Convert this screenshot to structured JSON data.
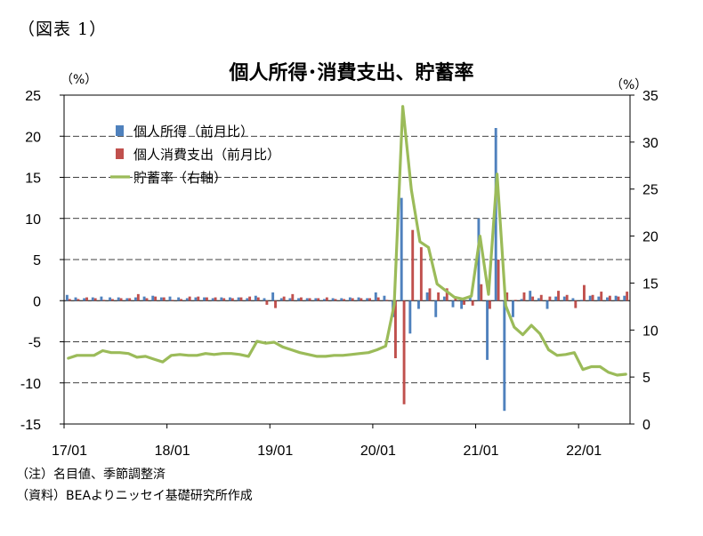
{
  "figure_label": "（図表 1）",
  "title": "個人所得･消費支出、貯蓄率",
  "unit_left": "（%）",
  "unit_right": "（%）",
  "notes": {
    "note1": "（注）名目値、季節調整済",
    "note2": "（資料）BEAよりニッセイ基礎研究所作成"
  },
  "colors": {
    "income": "#4F81BD",
    "consumption": "#C0504D",
    "saving": "#9BBB59"
  },
  "chart_data": {
    "type": "bar",
    "categories": [
      "17/01",
      "17/02",
      "17/03",
      "17/04",
      "17/05",
      "17/06",
      "17/07",
      "17/08",
      "17/09",
      "17/10",
      "17/11",
      "17/12",
      "18/01",
      "18/02",
      "18/03",
      "18/04",
      "18/05",
      "18/06",
      "18/07",
      "18/08",
      "18/09",
      "18/10",
      "18/11",
      "18/12",
      "19/01",
      "19/02",
      "19/03",
      "19/04",
      "19/05",
      "19/06",
      "19/07",
      "19/08",
      "19/09",
      "19/10",
      "19/11",
      "19/12",
      "20/01",
      "20/02",
      "20/03",
      "20/04",
      "20/05",
      "20/06",
      "20/07",
      "20/08",
      "20/09",
      "20/10",
      "20/11",
      "20/12",
      "21/01",
      "21/02",
      "21/03",
      "21/04",
      "21/05",
      "21/06",
      "21/07",
      "21/08",
      "21/09",
      "21/10",
      "21/11",
      "21/12",
      "22/01",
      "22/02",
      "22/03",
      "22/04",
      "22/05",
      "22/06"
    ],
    "x_tick_labels": [
      "17/01",
      "18/01",
      "19/01",
      "20/01",
      "21/01",
      "22/01"
    ],
    "y_left": {
      "ylim": [
        -15,
        25
      ],
      "ticks": [
        -15,
        -10,
        -5,
        0,
        5,
        10,
        15,
        20,
        25
      ]
    },
    "y_right": {
      "ylim": [
        0,
        35
      ],
      "ticks": [
        0,
        5,
        10,
        15,
        20,
        25,
        30,
        35
      ]
    },
    "grid": true,
    "legend_position": "top-left",
    "series": [
      {
        "name": "個人所得（前月比）",
        "axis": "left",
        "type": "bar",
        "values": [
          0.7,
          0.4,
          0.3,
          0.4,
          0.5,
          0.4,
          0.4,
          0.3,
          0.4,
          0.5,
          0.6,
          0.4,
          0.5,
          0.4,
          0.3,
          0.4,
          0.4,
          0.3,
          0.4,
          0.4,
          0.4,
          0.3,
          0.6,
          0.3,
          1.0,
          0.3,
          0.3,
          0.3,
          0.3,
          0.3,
          0.2,
          0.3,
          0.3,
          0.4,
          0.4,
          0.3,
          1.0,
          0.6,
          -2.0,
          12.5,
          -4.0,
          -1.0,
          1.0,
          -2.0,
          0.5,
          -0.8,
          -1.0,
          0.6,
          10.0,
          -7.2,
          21.0,
          -13.4,
          -2.0,
          0.2,
          1.2,
          0.3,
          -1.0,
          0.5,
          0.5,
          0.3,
          0.1,
          0.6,
          0.5,
          0.4,
          0.6,
          0.6
        ]
      },
      {
        "name": "個人消費支出（前月比）",
        "axis": "left",
        "type": "bar",
        "values": [
          0.2,
          0.2,
          0.4,
          0.3,
          0.1,
          0.2,
          0.3,
          0.3,
          0.8,
          0.3,
          0.5,
          0.4,
          0.1,
          0.2,
          0.5,
          0.5,
          0.4,
          0.4,
          0.3,
          0.3,
          0.4,
          0.5,
          0.4,
          -0.5,
          -0.9,
          0.5,
          0.8,
          0.4,
          0.3,
          0.3,
          0.4,
          0.2,
          0.2,
          0.3,
          0.3,
          0.3,
          0.4,
          0.1,
          -7.0,
          -12.6,
          8.6,
          6.5,
          1.5,
          1.0,
          1.5,
          0.3,
          -0.5,
          -0.6,
          2.0,
          -1.0,
          5.0,
          1.0,
          0.1,
          1.0,
          0.5,
          0.7,
          0.5,
          1.2,
          0.7,
          -0.9,
          1.9,
          0.7,
          1.1,
          0.6,
          0.5,
          1.1
        ]
      },
      {
        "name": "貯蓄率（右軸）",
        "axis": "right",
        "type": "line",
        "values": [
          7.0,
          7.3,
          7.3,
          7.3,
          7.8,
          7.6,
          7.6,
          7.5,
          7.1,
          7.2,
          6.9,
          6.6,
          7.3,
          7.4,
          7.3,
          7.3,
          7.5,
          7.4,
          7.5,
          7.5,
          7.4,
          7.2,
          8.8,
          8.6,
          8.7,
          8.2,
          7.9,
          7.6,
          7.4,
          7.2,
          7.2,
          7.3,
          7.3,
          7.4,
          7.5,
          7.6,
          7.9,
          8.3,
          12.7,
          33.8,
          24.9,
          19.4,
          18.8,
          14.9,
          14.2,
          13.5,
          13.3,
          13.6,
          20.0,
          13.8,
          26.6,
          12.6,
          10.3,
          9.5,
          10.5,
          9.6,
          7.9,
          7.3,
          7.4,
          7.6,
          5.8,
          6.1,
          6.1,
          5.5,
          5.2,
          5.3
        ]
      }
    ]
  }
}
